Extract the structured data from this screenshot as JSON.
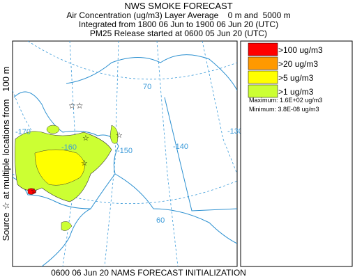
{
  "header": {
    "title": "NWS SMOKE FORECAST",
    "lines": [
      "Air Concentration (ug/m3) Layer Average    0 m and  5000 m",
      "Integrated from 1800 06 Jun to 1900 06 Jun 20 (UTC)",
      "PM25 Release started at 0600 05 Jun 20 (UTC)"
    ]
  },
  "side_label": "Source ☆ at multiple locations from   100 m",
  "footer": "0600 06 Jun 20 NAMS FORECAST INITIALIZATION",
  "legend": {
    "items": [
      {
        "label": ">100 ug/m3",
        "color": "#ff0000"
      },
      {
        "label": ">20 ug/m3",
        "color": "#ff9900"
      },
      {
        "label": ">5 ug/m3",
        "color": "#ffff00"
      },
      {
        "label": ">1 ug/m3",
        "color": "#ccff33"
      }
    ],
    "maximum": "Maximum: 1.6E+02 ug/m3",
    "minimum": "Minimum: 3.8E-08 ug/m3"
  },
  "map": {
    "labels": [
      "70",
      "-170",
      "-160",
      "-150",
      "-140",
      "-130",
      "60"
    ]
  }
}
